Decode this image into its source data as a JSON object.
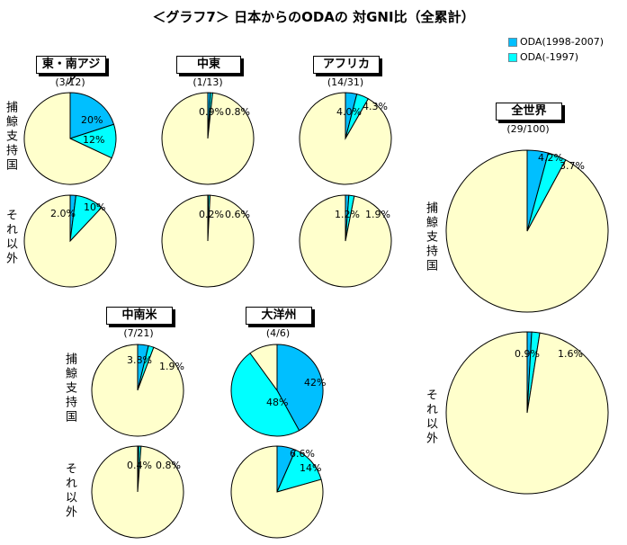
{
  "title": "＜グラフ7＞ 日本からのODAの 対GNI比（全累計）",
  "legend": [
    {
      "label": "ODA(1998-2007)",
      "color": "#00bfff"
    },
    {
      "label": "ODA(-1997)",
      "color": "#00ffff"
    }
  ],
  "colors": {
    "rest": "#ffffcc",
    "recent": "#00bfff",
    "older": "#00ffff",
    "stroke": "#000000"
  },
  "row_labels": {
    "support": "捕鯨支持国",
    "other": "それ以外"
  },
  "chart_data": [
    {
      "type": "pie",
      "region": "東・南アジア",
      "count": "(3/12)",
      "group": "捕鯨支持国",
      "series": [
        {
          "name": "ODA(1998-2007)",
          "value": 20,
          "label": "20%"
        },
        {
          "name": "ODA(-1997)",
          "value": 12,
          "label": "12%"
        }
      ]
    },
    {
      "type": "pie",
      "region": "東・南アジア",
      "count": "(3/12)",
      "group": "それ以外",
      "series": [
        {
          "name": "ODA(1998-2007)",
          "value": 2.0,
          "label": "2.0%"
        },
        {
          "name": "ODA(-1997)",
          "value": 10,
          "label": "10%"
        }
      ]
    },
    {
      "type": "pie",
      "region": "中東",
      "count": "(1/13)",
      "group": "捕鯨支持国",
      "series": [
        {
          "name": "ODA(1998-2007)",
          "value": 0.9,
          "label": "0.9%"
        },
        {
          "name": "ODA(-1997)",
          "value": 0.8,
          "label": "0.8%"
        }
      ]
    },
    {
      "type": "pie",
      "region": "中東",
      "count": "(1/13)",
      "group": "それ以外",
      "series": [
        {
          "name": "ODA(1998-2007)",
          "value": 0.2,
          "label": "0.2%"
        },
        {
          "name": "ODA(-1997)",
          "value": 0.6,
          "label": "0.6%"
        }
      ]
    },
    {
      "type": "pie",
      "region": "アフリカ",
      "count": "(14/31)",
      "group": "捕鯨支持国",
      "series": [
        {
          "name": "ODA(1998-2007)",
          "value": 4.0,
          "label": "4.0%"
        },
        {
          "name": "ODA(-1997)",
          "value": 4.3,
          "label": "4.3%"
        }
      ]
    },
    {
      "type": "pie",
      "region": "アフリカ",
      "count": "(14/31)",
      "group": "それ以外",
      "series": [
        {
          "name": "ODA(1998-2007)",
          "value": 1.2,
          "label": "1.2%"
        },
        {
          "name": "ODA(-1997)",
          "value": 1.9,
          "label": "1.9%"
        }
      ]
    },
    {
      "type": "pie",
      "region": "全世界",
      "count": "(29/100)",
      "group": "捕鯨支持国",
      "series": [
        {
          "name": "ODA(1998-2007)",
          "value": 4.2,
          "label": "4.2%"
        },
        {
          "name": "ODA(-1997)",
          "value": 3.7,
          "label": "3.7%"
        }
      ]
    },
    {
      "type": "pie",
      "region": "全世界",
      "count": "(29/100)",
      "group": "それ以外",
      "series": [
        {
          "name": "ODA(1998-2007)",
          "value": 0.9,
          "label": "0.9%"
        },
        {
          "name": "ODA(-1997)",
          "value": 1.6,
          "label": "1.6%"
        }
      ]
    },
    {
      "type": "pie",
      "region": "中南米",
      "count": "(7/21)",
      "group": "捕鯨支持国",
      "series": [
        {
          "name": "ODA(1998-2007)",
          "value": 3.8,
          "label": "3.8%"
        },
        {
          "name": "ODA(-1997)",
          "value": 1.9,
          "label": "1.9%"
        }
      ]
    },
    {
      "type": "pie",
      "region": "中南米",
      "count": "(7/21)",
      "group": "それ以外",
      "series": [
        {
          "name": "ODA(1998-2007)",
          "value": 0.4,
          "label": "0.4%"
        },
        {
          "name": "ODA(-1997)",
          "value": 0.8,
          "label": "0.8%"
        }
      ]
    },
    {
      "type": "pie",
      "region": "大洋州",
      "count": "(4/6)",
      "group": "捕鯨支持国",
      "series": [
        {
          "name": "ODA(1998-2007)",
          "value": 42,
          "label": "42%"
        },
        {
          "name": "ODA(-1997)",
          "value": 48,
          "label": "48%"
        }
      ]
    },
    {
      "type": "pie",
      "region": "大洋州",
      "count": "(4/6)",
      "group": "それ以外",
      "series": [
        {
          "name": "ODA(1998-2007)",
          "value": 6.6,
          "label": "6.6%"
        },
        {
          "name": "ODA(-1997)",
          "value": 14,
          "label": "14%"
        }
      ]
    }
  ]
}
